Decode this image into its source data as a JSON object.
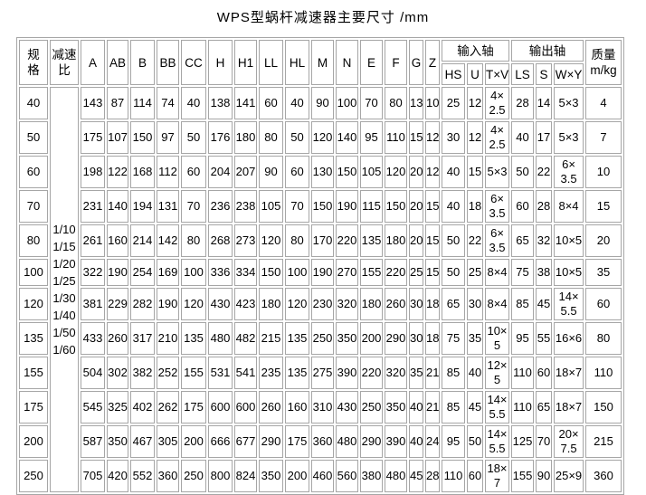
{
  "title": "WPS型蜗杆减速器主要尺寸 /mm",
  "colors": {
    "background": "#ffffff",
    "border": "#a6a6a6",
    "text": "#000000"
  },
  "table": {
    "header": {
      "spec": "规\n格",
      "ratio": "减速\n比",
      "dims": [
        "A",
        "AB",
        "B",
        "BB",
        "CC",
        "H",
        "H1",
        "LL",
        "HL",
        "M",
        "N",
        "E",
        "F",
        "G",
        "Z"
      ],
      "input_shaft_label": "输入轴",
      "input_shaft_cols": [
        "HS",
        "U",
        "T×V"
      ],
      "output_shaft_label": "输出轴",
      "output_shaft_cols": [
        "LS",
        "S",
        "W×Y"
      ],
      "mass": "质量\nm/kg"
    },
    "ratio_values": "1/10\n1/15\n1/20\n1/25\n1/30\n1/40\n1/50\n1/60",
    "rows": [
      {
        "spec": "40",
        "values": [
          "143",
          "87",
          "114",
          "74",
          "40",
          "138",
          "141",
          "60",
          "40",
          "90",
          "100",
          "70",
          "80",
          "13",
          "10",
          "25",
          "12",
          "4×\n2.5",
          "28",
          "14",
          "5×3",
          "4"
        ]
      },
      {
        "spec": "50",
        "values": [
          "175",
          "107",
          "150",
          "97",
          "50",
          "176",
          "180",
          "80",
          "50",
          "120",
          "140",
          "95",
          "110",
          "15",
          "12",
          "30",
          "12",
          "4×\n2.5",
          "40",
          "17",
          "5×3",
          "7"
        ]
      },
      {
        "spec": "60",
        "values": [
          "198",
          "122",
          "168",
          "112",
          "60",
          "204",
          "207",
          "90",
          "60",
          "130",
          "150",
          "105",
          "120",
          "20",
          "12",
          "40",
          "15",
          "5×3",
          "50",
          "22",
          "6×\n3.5",
          "10"
        ]
      },
      {
        "spec": "70",
        "values": [
          "231",
          "140",
          "194",
          "131",
          "70",
          "236",
          "238",
          "105",
          "70",
          "150",
          "190",
          "115",
          "150",
          "20",
          "15",
          "40",
          "18",
          "6×\n3.5",
          "60",
          "28",
          "8×4",
          "15"
        ]
      },
      {
        "spec": "80",
        "values": [
          "261",
          "160",
          "214",
          "142",
          "80",
          "268",
          "273",
          "120",
          "80",
          "170",
          "220",
          "135",
          "180",
          "20",
          "15",
          "50",
          "22",
          "6×\n3.5",
          "65",
          "32",
          "10×5",
          "20"
        ]
      },
      {
        "spec": "100",
        "values": [
          "322",
          "190",
          "254",
          "169",
          "100",
          "336",
          "334",
          "150",
          "100",
          "190",
          "270",
          "155",
          "220",
          "25",
          "15",
          "50",
          "25",
          "8×4",
          "75",
          "38",
          "10×5",
          "35"
        ]
      },
      {
        "spec": "120",
        "values": [
          "381",
          "229",
          "282",
          "190",
          "120",
          "430",
          "423",
          "180",
          "120",
          "230",
          "320",
          "180",
          "260",
          "30",
          "18",
          "65",
          "30",
          "8×4",
          "85",
          "45",
          "14×\n5.5",
          "60"
        ]
      },
      {
        "spec": "135",
        "values": [
          "433",
          "260",
          "317",
          "210",
          "135",
          "480",
          "482",
          "215",
          "135",
          "250",
          "350",
          "200",
          "290",
          "30",
          "18",
          "75",
          "35",
          "10×\n5",
          "95",
          "55",
          "16×6",
          "80"
        ]
      },
      {
        "spec": "155",
        "values": [
          "504",
          "302",
          "382",
          "252",
          "155",
          "531",
          "541",
          "235",
          "135",
          "275",
          "390",
          "220",
          "320",
          "35",
          "21",
          "85",
          "40",
          "12×\n5",
          "110",
          "60",
          "18×7",
          "110"
        ]
      },
      {
        "spec": "175",
        "values": [
          "545",
          "325",
          "402",
          "262",
          "175",
          "600",
          "600",
          "260",
          "160",
          "310",
          "430",
          "250",
          "350",
          "40",
          "21",
          "85",
          "45",
          "14×\n5.5",
          "110",
          "65",
          "18×7",
          "150"
        ]
      },
      {
        "spec": "200",
        "values": [
          "587",
          "350",
          "467",
          "305",
          "200",
          "666",
          "677",
          "290",
          "175",
          "360",
          "480",
          "290",
          "390",
          "40",
          "24",
          "95",
          "50",
          "14×\n5.5",
          "125",
          "70",
          "20×\n7.5",
          "215"
        ]
      },
      {
        "spec": "250",
        "values": [
          "705",
          "420",
          "552",
          "360",
          "250",
          "800",
          "824",
          "350",
          "200",
          "460",
          "560",
          "380",
          "480",
          "45",
          "28",
          "110",
          "60",
          "18×\n7",
          "155",
          "90",
          "25×9",
          "360"
        ]
      }
    ]
  }
}
